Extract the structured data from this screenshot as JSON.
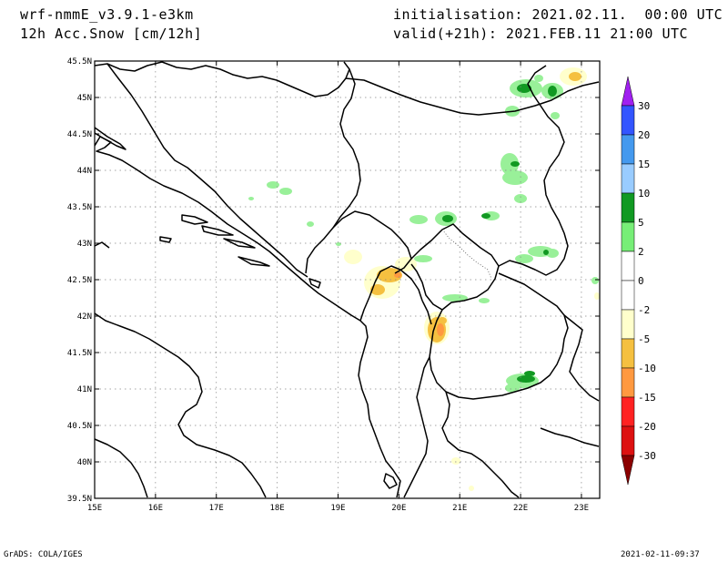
{
  "header": {
    "model": "wrf-nmmE_v3.9.1-e3km",
    "field": "12h Acc.Snow [cm/12h]",
    "init": "initialisation: 2021.02.11.  00:00 UTC",
    "valid": "valid(+21h): 2021.FEB.11 21:00 UTC"
  },
  "footer": {
    "credit": "GrADS: COLA/IGES",
    "timestamp": "2021-02-11-09:37"
  },
  "map": {
    "lon_ticks": [
      "15E",
      "16E",
      "17E",
      "18E",
      "19E",
      "20E",
      "21E",
      "22E",
      "23E"
    ],
    "lat_ticks": [
      "45.5N",
      "45N",
      "44.5N",
      "44N",
      "43.5N",
      "43N",
      "42.5N",
      "42N",
      "41.5N",
      "41N",
      "40.5N",
      "40N",
      "39.5N"
    ],
    "lon_range": [
      15,
      23.3
    ],
    "lat_range": [
      39.5,
      45.5
    ],
    "grid": true
  },
  "colorbar": {
    "levels": [
      "30",
      "20",
      "15",
      "10",
      "5",
      "2",
      "0",
      "-2",
      "-5",
      "-10",
      "-15",
      "-20",
      "-30"
    ],
    "colors": {
      "top_arrow": "#a020f0",
      "bottom_arrow": "#8b0000",
      "bins": [
        "#7b3ff0",
        "#3355ff",
        "#4499ee",
        "#99ccff",
        "#119922",
        "#77ee77",
        "#ffffff",
        "#ffffff",
        "#ffffcc",
        "#f5c040",
        "#ff9940",
        "#ff2222",
        "#dd1111",
        "#aa0000"
      ]
    }
  }
}
